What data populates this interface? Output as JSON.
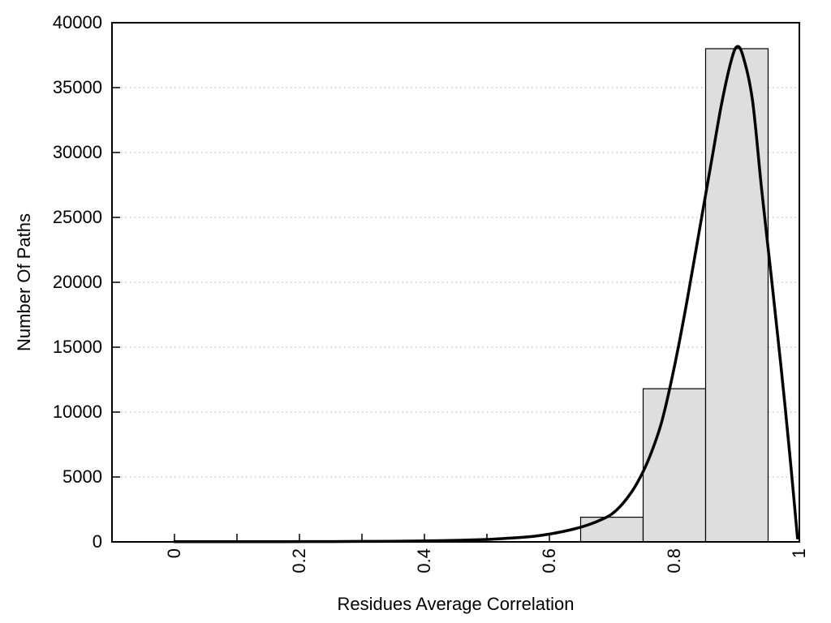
{
  "chart_data": {
    "type": "bar",
    "subtype": "histogram-with-fitted-density-curve",
    "title": "",
    "xlabel": "Residues Average Correlation",
    "ylabel": "Number Of Paths",
    "xlim": [
      -0.1,
      1.0
    ],
    "ylim": [
      0,
      40000
    ],
    "grid": "horizontal-dotted",
    "legend": "none",
    "x_ticks": [
      {
        "v": 0.0,
        "label": "0"
      },
      {
        "v": 0.1,
        "label": ""
      },
      {
        "v": 0.2,
        "label": "0.2"
      },
      {
        "v": 0.3,
        "label": ""
      },
      {
        "v": 0.4,
        "label": "0.4"
      },
      {
        "v": 0.5,
        "label": ""
      },
      {
        "v": 0.6,
        "label": "0.6"
      },
      {
        "v": 0.7,
        "label": ""
      },
      {
        "v": 0.8,
        "label": "0.8"
      },
      {
        "v": 0.9,
        "label": ""
      },
      {
        "v": 1.0,
        "label": "1"
      }
    ],
    "y_ticks": [
      {
        "v": 0,
        "label": "0"
      },
      {
        "v": 5000,
        "label": "5000"
      },
      {
        "v": 10000,
        "label": "10000"
      },
      {
        "v": 15000,
        "label": "15000"
      },
      {
        "v": 20000,
        "label": "20000"
      },
      {
        "v": 25000,
        "label": "25000"
      },
      {
        "v": 30000,
        "label": "30000"
      },
      {
        "v": 35000,
        "label": "35000"
      },
      {
        "v": 40000,
        "label": "40000"
      }
    ],
    "bars": {
      "bins": [
        [
          0.65,
          0.75
        ],
        [
          0.75,
          0.85
        ],
        [
          0.85,
          0.95
        ]
      ],
      "counts": [
        1900,
        11800,
        38000
      ],
      "fill": "#dedede",
      "edge": "#000000"
    },
    "curve": {
      "name": "fitted-density",
      "color": "#000000",
      "width": 3.5,
      "points": [
        [
          0.0,
          10
        ],
        [
          0.05,
          12
        ],
        [
          0.1,
          15
        ],
        [
          0.15,
          18
        ],
        [
          0.2,
          22
        ],
        [
          0.25,
          28
        ],
        [
          0.3,
          36
        ],
        [
          0.35,
          50
        ],
        [
          0.4,
          75
        ],
        [
          0.45,
          120
        ],
        [
          0.5,
          190
        ],
        [
          0.55,
          330
        ],
        [
          0.58,
          460
        ],
        [
          0.6,
          600
        ],
        [
          0.62,
          780
        ],
        [
          0.64,
          1000
        ],
        [
          0.66,
          1280
        ],
        [
          0.68,
          1650
        ],
        [
          0.7,
          2150
        ],
        [
          0.72,
          3100
        ],
        [
          0.74,
          4500
        ],
        [
          0.76,
          6500
        ],
        [
          0.78,
          9300
        ],
        [
          0.8,
          13500
        ],
        [
          0.82,
          18500
        ],
        [
          0.84,
          24000
        ],
        [
          0.86,
          29500
        ],
        [
          0.875,
          33600
        ],
        [
          0.89,
          36900
        ],
        [
          0.9,
          38150
        ],
        [
          0.91,
          37400
        ],
        [
          0.925,
          34000
        ],
        [
          0.94,
          27000
        ],
        [
          0.955,
          20500
        ],
        [
          0.97,
          13800
        ],
        [
          0.985,
          6600
        ],
        [
          0.997,
          300
        ]
      ]
    },
    "colors": {
      "background": "#ffffff",
      "axis": "#000000",
      "grid": "#c8c8c8",
      "text": "#000000"
    }
  }
}
